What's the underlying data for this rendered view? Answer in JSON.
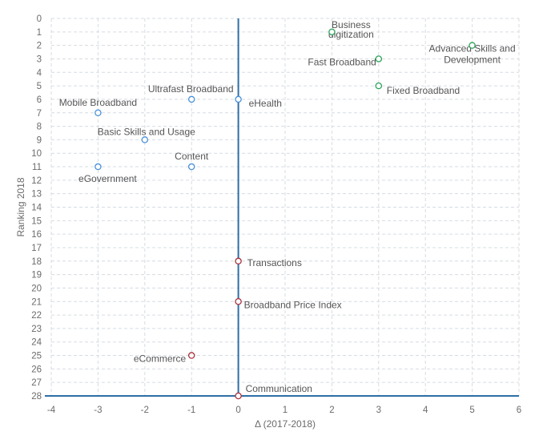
{
  "chart_data": {
    "type": "scatter",
    "title": "",
    "xlabel": "Δ (2017-2018)",
    "ylabel": "Ranking 2018",
    "xlim": [
      -4,
      6
    ],
    "ylim": [
      0,
      28
    ],
    "y_inverted": true,
    "x_ticks": [
      -4,
      -3,
      -2,
      -1,
      0,
      1,
      2,
      3,
      4,
      5,
      6
    ],
    "y_ticks": [
      0,
      1,
      2,
      3,
      4,
      5,
      6,
      7,
      8,
      9,
      10,
      11,
      12,
      13,
      14,
      15,
      16,
      17,
      18,
      19,
      20,
      21,
      22,
      23,
      24,
      25,
      26,
      27,
      28
    ],
    "grid": true,
    "colors": {
      "green": "#2ea35a",
      "blue": "#4a90d9",
      "red": "#a8323e",
      "axis": "#2e6fa7"
    },
    "points": [
      {
        "label": "Business digitization",
        "lines": [
          "Business",
          "digitization"
        ],
        "x": 2,
        "y": 1,
        "color": "green"
      },
      {
        "label": "Advanced Skills and Development",
        "lines": [
          "Advanced Skills and",
          "Development"
        ],
        "x": 5,
        "y": 2,
        "color": "green"
      },
      {
        "label": "Fast Broadband",
        "lines": [
          "Fast Broadband"
        ],
        "x": 3,
        "y": 3,
        "color": "green"
      },
      {
        "label": "Fixed Broadband",
        "lines": [
          "Fixed Broadband"
        ],
        "x": 3,
        "y": 5,
        "color": "green"
      },
      {
        "label": "Ultrafast Broadband",
        "lines": [
          "Ultrafast Broadband"
        ],
        "x": -1,
        "y": 6,
        "color": "blue"
      },
      {
        "label": "eHealth",
        "lines": [
          "eHealth"
        ],
        "x": 0,
        "y": 6,
        "color": "blue"
      },
      {
        "label": "Mobile Broadband",
        "lines": [
          "Mobile Broadband"
        ],
        "x": -3,
        "y": 7,
        "color": "blue"
      },
      {
        "label": "Basic Skills and Usage",
        "lines": [
          "Basic Skills and Usage"
        ],
        "x": -2,
        "y": 9,
        "color": "blue"
      },
      {
        "label": "Content",
        "lines": [
          "Content"
        ],
        "x": -1,
        "y": 11,
        "color": "blue"
      },
      {
        "label": "eGovernment",
        "lines": [
          "eGovernment"
        ],
        "x": -3,
        "y": 11,
        "color": "blue"
      },
      {
        "label": "Transactions",
        "lines": [
          "Transactions"
        ],
        "x": 0,
        "y": 18,
        "color": "red"
      },
      {
        "label": "Broadband Price Index",
        "lines": [
          "Broadband Price Index"
        ],
        "x": 0,
        "y": 21,
        "color": "red"
      },
      {
        "label": "eCommerce",
        "lines": [
          "eCommerce"
        ],
        "x": -1,
        "y": 25,
        "color": "red"
      },
      {
        "label": "Communication",
        "lines": [
          "Communication"
        ],
        "x": 0,
        "y": 28,
        "color": "red"
      }
    ]
  }
}
